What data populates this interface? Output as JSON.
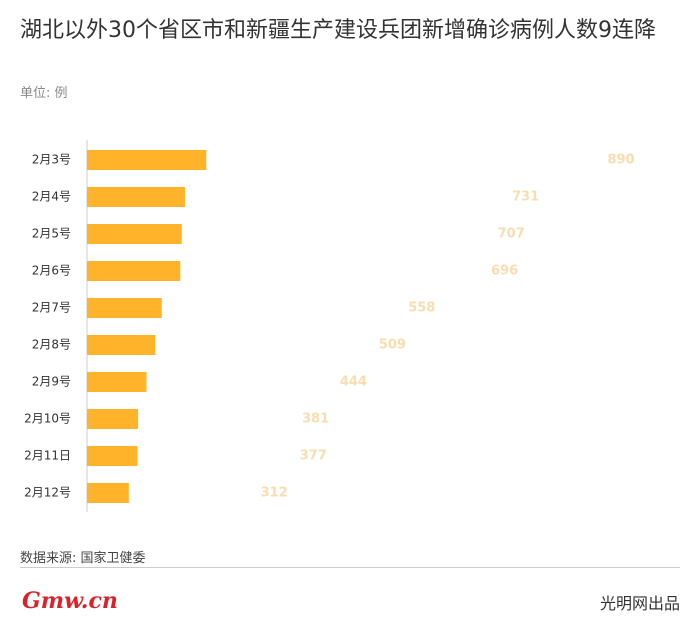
{
  "chart_data": {
    "type": "hbar",
    "title": "湖北以外30个省区市和新疆生产建设兵团新增确诊病例人数9连降",
    "unit": "单位: 例",
    "categories": [
      "2月3号",
      "2月4号",
      "2月5号",
      "2月6号",
      "2月7号",
      "2月8号",
      "2月9号",
      "2月10号",
      "2月11日",
      "2月12号"
    ],
    "values": [
      890,
      731,
      707,
      696,
      558,
      509,
      444,
      381,
      377,
      312
    ],
    "color": "#ffb32b",
    "label_color": "#f9ddb0",
    "source": "数据来源: 国家卫健委",
    "logo": "Gmw.cn",
    "brand": "光明网出品"
  }
}
